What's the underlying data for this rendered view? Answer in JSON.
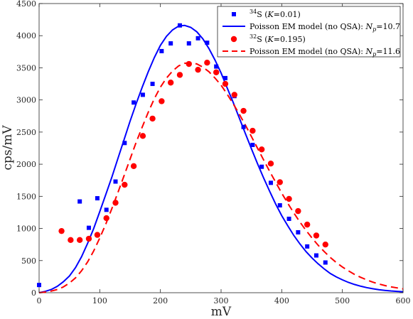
{
  "chart_data": {
    "type": "scatter",
    "xlabel": "mV",
    "ylabel": "cps/mV",
    "xlim": [
      0,
      600
    ],
    "ylim": [
      0,
      4500
    ],
    "x_ticks": [
      "0",
      "100",
      "200",
      "300",
      "400",
      "500",
      "600"
    ],
    "y_ticks": [
      "0",
      "500",
      "1000",
      "1500",
      "2000",
      "2500",
      "3000",
      "3500",
      "4000",
      "4500"
    ],
    "grid": false,
    "legend_position": "top-right",
    "series": [
      {
        "kind": "scatter",
        "marker": "square",
        "color": "#0000ff",
        "legend": {
          "sup": "34",
          "main": "S (",
          "ital": "K",
          "rest": "=0.01)"
        },
        "points": [
          [
            0,
            120
          ],
          [
            67,
            1420
          ],
          [
            82,
            1010
          ],
          [
            96,
            1470
          ],
          [
            111,
            1290
          ],
          [
            126,
            1730
          ],
          [
            141,
            2330
          ],
          [
            156,
            2960
          ],
          [
            171,
            3080
          ],
          [
            187,
            3250
          ],
          [
            202,
            3760
          ],
          [
            217,
            3880
          ],
          [
            232,
            4160
          ],
          [
            247,
            3880
          ],
          [
            262,
            3960
          ],
          [
            277,
            3890
          ],
          [
            292,
            3520
          ],
          [
            307,
            3340
          ],
          [
            322,
            3060
          ],
          [
            337,
            2580
          ],
          [
            352,
            2300
          ],
          [
            367,
            1960
          ],
          [
            382,
            1710
          ],
          [
            397,
            1360
          ],
          [
            412,
            1150
          ],
          [
            427,
            940
          ],
          [
            442,
            720
          ],
          [
            457,
            580
          ],
          [
            472,
            470
          ]
        ]
      },
      {
        "kind": "line",
        "style": "solid",
        "color": "#0000ff",
        "legend": {
          "main": "Poisson EM model (no QSA): ",
          "ital": "N",
          "sub": "p",
          "rest": "=10.7"
        },
        "x": [
          0,
          10,
          20,
          30,
          40,
          50,
          60,
          70,
          80,
          90,
          100,
          110,
          120,
          130,
          140,
          150,
          160,
          170,
          180,
          190,
          200,
          210,
          220,
          230,
          240,
          250,
          260,
          270,
          280,
          290,
          300,
          310,
          320,
          330,
          340,
          350,
          360,
          370,
          380,
          390,
          400,
          410,
          420,
          430,
          440,
          450,
          460,
          470,
          480,
          490,
          500,
          510,
          520,
          530,
          540,
          550,
          560,
          570,
          580,
          590,
          600
        ],
        "y": [
          0,
          20,
          50,
          100,
          170,
          260,
          390,
          560,
          770,
          1000,
          1260,
          1530,
          1800,
          2090,
          2380,
          2670,
          2940,
          3200,
          3440,
          3660,
          3850,
          3990,
          4090,
          4150,
          4160,
          4130,
          4060,
          3950,
          3800,
          3620,
          3420,
          3190,
          2960,
          2720,
          2480,
          2240,
          2010,
          1790,
          1580,
          1380,
          1200,
          1040,
          890,
          760,
          640,
          540,
          450,
          370,
          300,
          245,
          200,
          160,
          128,
          102,
          80,
          62,
          48,
          37,
          28,
          21,
          15
        ]
      },
      {
        "kind": "scatter",
        "marker": "circle",
        "color": "#ff0000",
        "legend": {
          "sup": "32",
          "main": "S (",
          "ital": "K",
          "rest": "=0.195)"
        },
        "points": [
          [
            37,
            960
          ],
          [
            52,
            820
          ],
          [
            67,
            820
          ],
          [
            82,
            840
          ],
          [
            96,
            900
          ],
          [
            111,
            1160
          ],
          [
            126,
            1400
          ],
          [
            141,
            1680
          ],
          [
            156,
            1970
          ],
          [
            171,
            2440
          ],
          [
            187,
            2710
          ],
          [
            202,
            2980
          ],
          [
            217,
            3270
          ],
          [
            232,
            3390
          ],
          [
            247,
            3560
          ],
          [
            262,
            3470
          ],
          [
            277,
            3580
          ],
          [
            292,
            3430
          ],
          [
            307,
            3250
          ],
          [
            322,
            3080
          ],
          [
            337,
            2830
          ],
          [
            352,
            2520
          ],
          [
            367,
            2230
          ],
          [
            382,
            2010
          ],
          [
            397,
            1720
          ],
          [
            412,
            1460
          ],
          [
            427,
            1270
          ],
          [
            442,
            1060
          ],
          [
            457,
            890
          ],
          [
            472,
            750
          ]
        ]
      },
      {
        "kind": "line",
        "style": "dashed",
        "color": "#ff0000",
        "legend": {
          "main": "Poisson EM model (no QSA): ",
          "ital": "N",
          "sub": "p",
          "rest": "=11.6"
        },
        "x": [
          0,
          10,
          20,
          30,
          40,
          50,
          60,
          70,
          80,
          90,
          100,
          110,
          120,
          130,
          140,
          150,
          160,
          170,
          180,
          190,
          200,
          210,
          220,
          230,
          240,
          250,
          260,
          270,
          280,
          290,
          300,
          310,
          320,
          330,
          340,
          350,
          360,
          370,
          380,
          390,
          400,
          410,
          420,
          430,
          440,
          450,
          460,
          470,
          480,
          490,
          500,
          510,
          520,
          530,
          540,
          550,
          560,
          570,
          580,
          590,
          600
        ],
        "y": [
          0,
          10,
          25,
          50,
          90,
          150,
          230,
          340,
          480,
          650,
          850,
          1070,
          1310,
          1560,
          1820,
          2080,
          2340,
          2580,
          2810,
          3020,
          3200,
          3340,
          3450,
          3530,
          3570,
          3580,
          3560,
          3510,
          3440,
          3340,
          3230,
          3090,
          2940,
          2780,
          2610,
          2430,
          2250,
          2070,
          1890,
          1720,
          1550,
          1390,
          1240,
          1100,
          970,
          850,
          740,
          640,
          550,
          470,
          400,
          340,
          285,
          240,
          200,
          165,
          136,
          112,
          92,
          75,
          60
        ]
      }
    ]
  }
}
